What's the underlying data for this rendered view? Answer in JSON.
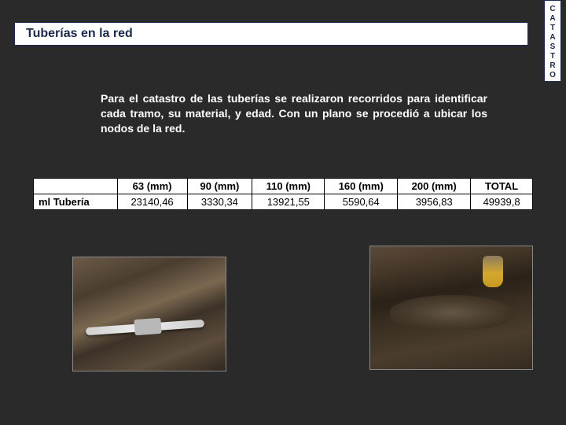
{
  "title": "Tuberías en la red",
  "side_label_letters": [
    "C",
    "A",
    "T",
    "A",
    "S",
    "T",
    "R",
    "O"
  ],
  "body_paragraph": "Para el catastro de las tuberías se realizaron recorridos para identificar cada tramo, su material, y edad. Con un plano se procedió a ubicar los nodos de la red.",
  "table": {
    "row_label": "ml Tubería",
    "columns": [
      "63 (mm)",
      "90 (mm)",
      "110 (mm)",
      "160 (mm)",
      "200 (mm)",
      "TOTAL"
    ],
    "values": [
      "23140,46",
      "3330,34",
      "13921,55",
      "5590,64",
      "3956,83",
      "49939,8"
    ]
  },
  "colors": {
    "page_bg": "#2a2a2a",
    "box_bg": "#ffffff",
    "box_border": "#1a2a4a",
    "text_light": "#ffffff",
    "text_dark": "#1a2a4a"
  }
}
